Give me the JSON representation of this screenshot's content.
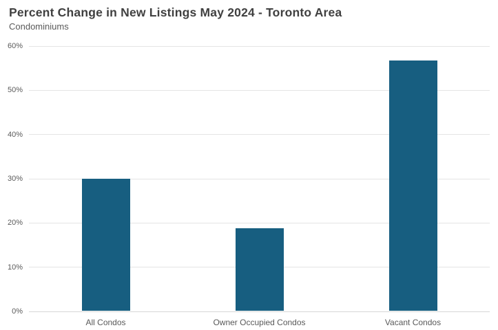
{
  "chart_data": {
    "type": "bar",
    "title": "Percent Change in New Listings May 2024 - Toronto Area",
    "subtitle": "Condominiums",
    "categories": [
      "All Condos",
      "Owner Occupied Condos",
      "Vacant Condos"
    ],
    "values": [
      29.8,
      18.6,
      56.6
    ],
    "ylim": [
      0,
      60
    ],
    "yticks": [
      0,
      10,
      20,
      30,
      40,
      50,
      60
    ],
    "ytick_label_suffix": "%",
    "xlabel": "",
    "ylabel": "",
    "legend": "none",
    "grid": "horizontal",
    "bar_color": "#175E80",
    "gridline_color": "#e4e4e4",
    "axis_line_color": "#d6d6d6",
    "title_color": "#404040",
    "label_color": "#595959"
  }
}
